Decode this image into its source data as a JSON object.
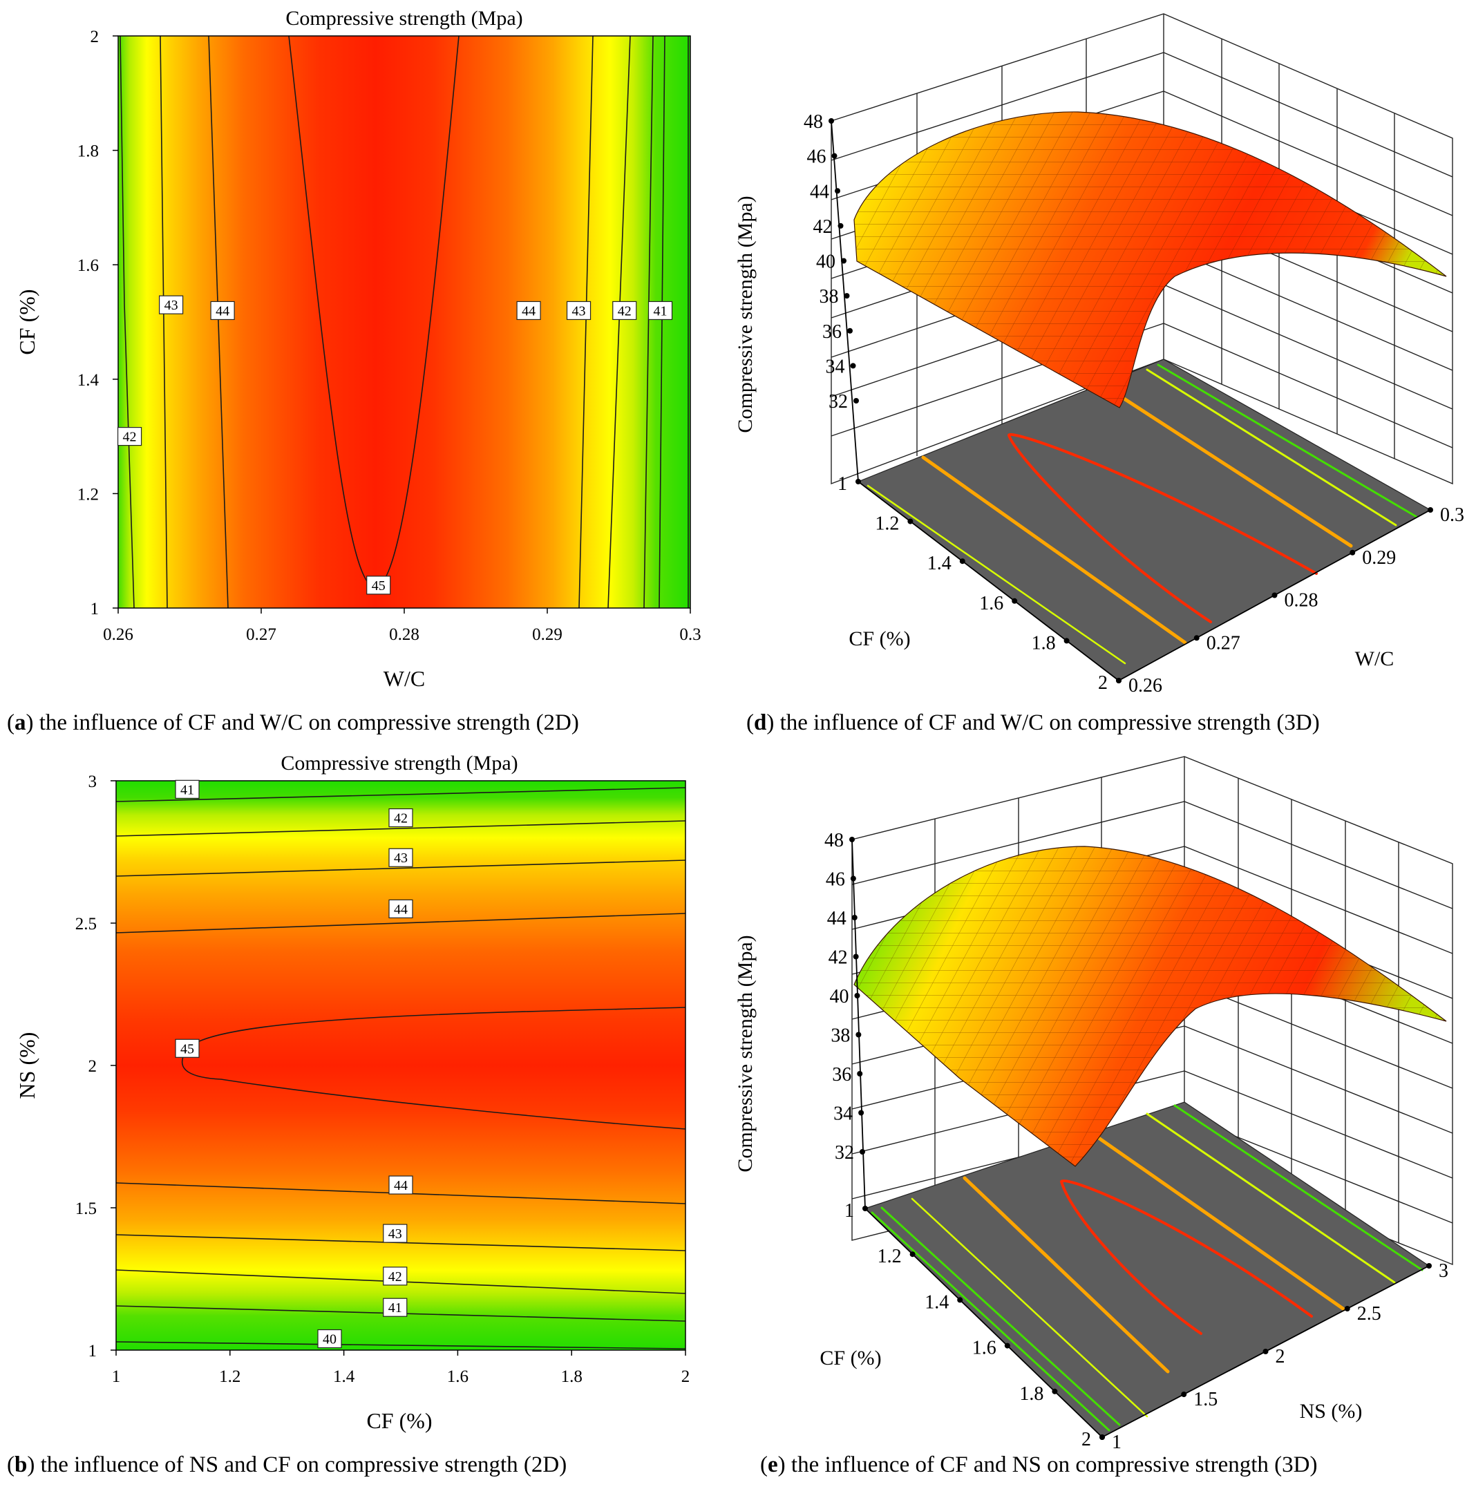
{
  "chart_data": [
    {
      "id": "a",
      "type": "contour",
      "title": "Compressive strength (Mpa)",
      "xlabel": "W/C",
      "ylabel": "CF (%)",
      "xlim": [
        0.26,
        0.3
      ],
      "ylim": [
        1,
        2
      ],
      "x_ticks": [
        0.26,
        0.27,
        0.28,
        0.29,
        0.3
      ],
      "x_tick_labels": [
        "0.26",
        "0.27",
        "0.28",
        "0.29",
        "0.3"
      ],
      "y_ticks": [
        1,
        1.2,
        1.4,
        1.6,
        1.8,
        2
      ],
      "y_tick_labels": [
        "1",
        "1.2",
        "1.4",
        "1.6",
        "1.8",
        "2"
      ],
      "contour_labels": [
        {
          "text": "42",
          "x": 0.2608,
          "y": 1.3
        },
        {
          "text": "43",
          "x": 0.2637,
          "y": 1.53
        },
        {
          "text": "44",
          "x": 0.2673,
          "y": 1.52
        },
        {
          "text": "45",
          "x": 0.2782,
          "y": 1.04
        },
        {
          "text": "44",
          "x": 0.2887,
          "y": 1.52
        },
        {
          "text": "43",
          "x": 0.2922,
          "y": 1.52
        },
        {
          "text": "42",
          "x": 0.2954,
          "y": 1.52
        },
        {
          "text": "41",
          "x": 0.2979,
          "y": 1.52
        }
      ],
      "caption_label": "a",
      "caption_text": ") the influence of CF and W/C on compressive strength (2D)"
    },
    {
      "id": "b",
      "type": "contour",
      "title": "Compressive strength (Mpa)",
      "xlabel": "CF (%)",
      "ylabel": "NS (%)",
      "xlim": [
        1,
        2
      ],
      "ylim": [
        1,
        3
      ],
      "x_ticks": [
        1,
        1.2,
        1.4,
        1.6,
        1.8,
        2
      ],
      "x_tick_labels": [
        "1",
        "1.2",
        "1.4",
        "1.6",
        "1.8",
        "2"
      ],
      "y_ticks": [
        1,
        1.5,
        2,
        2.5,
        3
      ],
      "y_tick_labels": [
        "1",
        "1.5",
        "2",
        "2.5",
        "3"
      ],
      "contour_labels": [
        {
          "text": "41",
          "x": 1.125,
          "y": 2.97
        },
        {
          "text": "42",
          "x": 1.5,
          "y": 2.87
        },
        {
          "text": "43",
          "x": 1.5,
          "y": 2.73
        },
        {
          "text": "44",
          "x": 1.5,
          "y": 2.55
        },
        {
          "text": "45",
          "x": 1.125,
          "y": 2.06
        },
        {
          "text": "44",
          "x": 1.5,
          "y": 1.58
        },
        {
          "text": "43",
          "x": 1.49,
          "y": 1.41
        },
        {
          "text": "42",
          "x": 1.49,
          "y": 1.26
        },
        {
          "text": "41",
          "x": 1.49,
          "y": 1.15
        },
        {
          "text": "40",
          "x": 1.375,
          "y": 1.04
        }
      ],
      "caption_label": "b",
      "caption_text": ") the influence of NS and CF on compressive strength (2D)"
    },
    {
      "id": "d",
      "type": "surface3d",
      "zlabel": "Compressive strength (Mpa)",
      "z_ticks": [
        "32",
        "34",
        "36",
        "38",
        "40",
        "42",
        "44",
        "46",
        "48"
      ],
      "x_axis_label": "CF (%)",
      "x_ticks": [
        "1",
        "1.2",
        "1.4",
        "1.6",
        "1.8",
        "2"
      ],
      "y_axis_label": "W/C",
      "y_ticks": [
        "0.26",
        "0.27",
        "0.28",
        "0.29",
        "0.3"
      ],
      "caption_label": "d",
      "caption_text": ") the influence of CF and W/C on compressive strength (3D)"
    },
    {
      "id": "e",
      "type": "surface3d",
      "zlabel": "Compressive strength (Mpa)",
      "z_ticks": [
        "32",
        "34",
        "36",
        "38",
        "40",
        "42",
        "44",
        "46",
        "48"
      ],
      "x_axis_label": "CF (%)",
      "x_ticks": [
        "1",
        "1.2",
        "1.4",
        "1.6",
        "1.8",
        "2"
      ],
      "y_axis_label": "NS (%)",
      "y_ticks": [
        "1",
        "1.5",
        "2",
        "2.5",
        "3"
      ],
      "caption_label": "e",
      "caption_text": ") the influence of CF and NS on compressive strength (3D)"
    }
  ]
}
